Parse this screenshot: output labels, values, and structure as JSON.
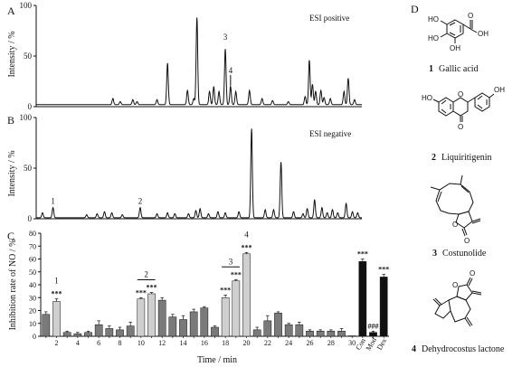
{
  "panels": {
    "A": {
      "letter": "A",
      "mode": "ESI positive"
    },
    "B": {
      "letter": "B",
      "mode": "ESI negative"
    },
    "C": {
      "letter": "C"
    },
    "D": {
      "letter": "D"
    }
  },
  "chromatogram_ylabel": "Intensity / %",
  "bar_ylabel": "Inhibition rate of NO / %",
  "xlabel": "Time / min",
  "peak_labels_A": [
    "3",
    "4"
  ],
  "peak_labels_B": [
    "1",
    "2"
  ],
  "compounds": [
    {
      "num": "1",
      "name": "Gallic acid",
      "atoms": [
        "HO",
        "HO",
        "OH",
        "O",
        "OH"
      ]
    },
    {
      "num": "2",
      "name": "Liquiritigenin",
      "atoms": [
        "HO",
        "O",
        "O",
        "OH"
      ]
    },
    {
      "num": "3",
      "name": "Costunolide",
      "atoms": [
        "O",
        "O"
      ]
    },
    {
      "num": "4",
      "name": "Dehydrocostus lactone",
      "atoms": [
        "O",
        "O"
      ]
    }
  ],
  "chart_data": [
    {
      "type": "line",
      "panel": "A",
      "title": "ESI positive",
      "xlabel": "",
      "ylabel": "Intensity / %",
      "xlim": [
        0,
        31
      ],
      "ylim": [
        0,
        100
      ],
      "yticks": [
        0,
        50,
        100
      ],
      "baseline": 2,
      "peaks": [
        {
          "t": 7.3,
          "h": 6
        },
        {
          "t": 8.0,
          "h": 3
        },
        {
          "t": 9.2,
          "h": 5
        },
        {
          "t": 9.6,
          "h": 3
        },
        {
          "t": 11.5,
          "h": 5
        },
        {
          "t": 12.5,
          "h": 41
        },
        {
          "t": 14.4,
          "h": 14
        },
        {
          "t": 15.0,
          "h": 6
        },
        {
          "t": 15.3,
          "h": 86
        },
        {
          "t": 16.5,
          "h": 13
        },
        {
          "t": 16.9,
          "h": 18
        },
        {
          "t": 17.4,
          "h": 13
        },
        {
          "t": 18.0,
          "h": 55
        },
        {
          "t": 18.5,
          "h": 18
        },
        {
          "t": 19.0,
          "h": 13
        },
        {
          "t": 20.3,
          "h": 14
        },
        {
          "t": 21.5,
          "h": 6
        },
        {
          "t": 22.5,
          "h": 4
        },
        {
          "t": 24.0,
          "h": 3
        },
        {
          "t": 25.6,
          "h": 8
        },
        {
          "t": 26.0,
          "h": 44
        },
        {
          "t": 26.3,
          "h": 20
        },
        {
          "t": 26.6,
          "h": 13
        },
        {
          "t": 27.1,
          "h": 14
        },
        {
          "t": 27.4,
          "h": 7
        },
        {
          "t": 28.0,
          "h": 6
        },
        {
          "t": 29.3,
          "h": 13
        },
        {
          "t": 29.7,
          "h": 26
        },
        {
          "t": 30.3,
          "h": 5
        }
      ],
      "annotations": [
        {
          "label": "3",
          "t": 18.0
        },
        {
          "label": "4",
          "t": 18.5
        }
      ]
    },
    {
      "type": "line",
      "panel": "B",
      "title": "ESI negative",
      "xlabel": "",
      "ylabel": "Intensity / %",
      "xlim": [
        0,
        31
      ],
      "ylim": [
        0,
        100
      ],
      "yticks": [
        0,
        50,
        100
      ],
      "baseline": 1,
      "peaks": [
        {
          "t": 0.6,
          "h": 5
        },
        {
          "t": 1.6,
          "h": 10
        },
        {
          "t": 4.8,
          "h": 3
        },
        {
          "t": 5.8,
          "h": 4
        },
        {
          "t": 6.5,
          "h": 6
        },
        {
          "t": 7.2,
          "h": 5
        },
        {
          "t": 8.2,
          "h": 3
        },
        {
          "t": 9.9,
          "h": 10
        },
        {
          "t": 11.5,
          "h": 4
        },
        {
          "t": 12.5,
          "h": 5
        },
        {
          "t": 13.2,
          "h": 4
        },
        {
          "t": 14.5,
          "h": 4
        },
        {
          "t": 15.2,
          "h": 7
        },
        {
          "t": 15.6,
          "h": 9
        },
        {
          "t": 16.4,
          "h": 4
        },
        {
          "t": 17.3,
          "h": 6
        },
        {
          "t": 18.0,
          "h": 5
        },
        {
          "t": 19.3,
          "h": 6
        },
        {
          "t": 20.5,
          "h": 88
        },
        {
          "t": 21.8,
          "h": 8
        },
        {
          "t": 22.6,
          "h": 8
        },
        {
          "t": 23.3,
          "h": 55
        },
        {
          "t": 24.5,
          "h": 6
        },
        {
          "t": 25.4,
          "h": 4
        },
        {
          "t": 25.8,
          "h": 9
        },
        {
          "t": 26.5,
          "h": 18
        },
        {
          "t": 27.2,
          "h": 10
        },
        {
          "t": 27.7,
          "h": 5
        },
        {
          "t": 28.2,
          "h": 8
        },
        {
          "t": 28.7,
          "h": 5
        },
        {
          "t": 29.5,
          "h": 14
        },
        {
          "t": 30.1,
          "h": 6
        },
        {
          "t": 30.6,
          "h": 5
        }
      ],
      "annotations": [
        {
          "label": "1",
          "t": 1.6
        },
        {
          "label": "2",
          "t": 9.9
        }
      ]
    },
    {
      "type": "bar",
      "panel": "C",
      "xlabel": "Time / min",
      "ylabel": "Inhibition rate of NO / %",
      "ylim": [
        0,
        80
      ],
      "yticks": [
        0,
        10,
        20,
        30,
        40,
        50,
        60,
        70,
        80
      ],
      "categories": [
        "1",
        "2",
        "3",
        "4",
        "5",
        "6",
        "7",
        "8",
        "9",
        "10",
        "11",
        "12",
        "13",
        "14",
        "15",
        "16",
        "17",
        "18",
        "19",
        "20",
        "21",
        "22",
        "23",
        "24",
        "25",
        "26",
        "27",
        "28",
        "29",
        "30",
        "Con",
        "Mod",
        "Dex"
      ],
      "tick_labels": [
        "2",
        "4",
        "6",
        "8",
        "10",
        "12",
        "14",
        "16",
        "18",
        "20",
        "22",
        "24",
        "26",
        "28",
        "30",
        "Con",
        "Mod",
        "Dex"
      ],
      "values": [
        17,
        27,
        3,
        2,
        3,
        9,
        6,
        5,
        8,
        29,
        33,
        28,
        15,
        13,
        19,
        22,
        7,
        30,
        43,
        64,
        5,
        12,
        18,
        9,
        9,
        4,
        4,
        4,
        4,
        0,
        58,
        3,
        46
      ],
      "errors": [
        2,
        2,
        1,
        1,
        1,
        3,
        2,
        2,
        3,
        1,
        1,
        2,
        2,
        3,
        2,
        1,
        1,
        2,
        1,
        1,
        2,
        4,
        1,
        1,
        2,
        1,
        1,
        1,
        2,
        0,
        2,
        1,
        2
      ],
      "fill": [
        "mid",
        "light",
        "mid",
        "mid",
        "mid",
        "mid",
        "mid",
        "mid",
        "mid",
        "light",
        "light",
        "mid",
        "mid",
        "mid",
        "mid",
        "mid",
        "mid",
        "light",
        "light",
        "light",
        "mid",
        "mid",
        "mid",
        "mid",
        "mid",
        "mid",
        "mid",
        "mid",
        "mid",
        "mid",
        "black",
        "black",
        "black"
      ],
      "significance": [
        {
          "index": 1,
          "marks": "***"
        },
        {
          "index": 9,
          "marks": "***"
        },
        {
          "index": 10,
          "marks": "***"
        },
        {
          "index": 17,
          "marks": "***"
        },
        {
          "index": 18,
          "marks": "***"
        },
        {
          "index": 19,
          "marks": "***"
        },
        {
          "index": 30,
          "marks": "***"
        },
        {
          "index": 31,
          "marks": "###"
        },
        {
          "index": 32,
          "marks": "***"
        }
      ],
      "groups": [
        {
          "label": "1",
          "from": 1,
          "to": 1,
          "line": false
        },
        {
          "label": "2",
          "from": 9,
          "to": 10,
          "line": true
        },
        {
          "label": "3",
          "from": 17,
          "to": 18,
          "line": true
        },
        {
          "label": "4",
          "from": 19,
          "to": 19,
          "line": false
        }
      ],
      "colors": {
        "black": "#111111",
        "mid": "#7a7a7a",
        "light": "#cfcfcf"
      }
    }
  ]
}
